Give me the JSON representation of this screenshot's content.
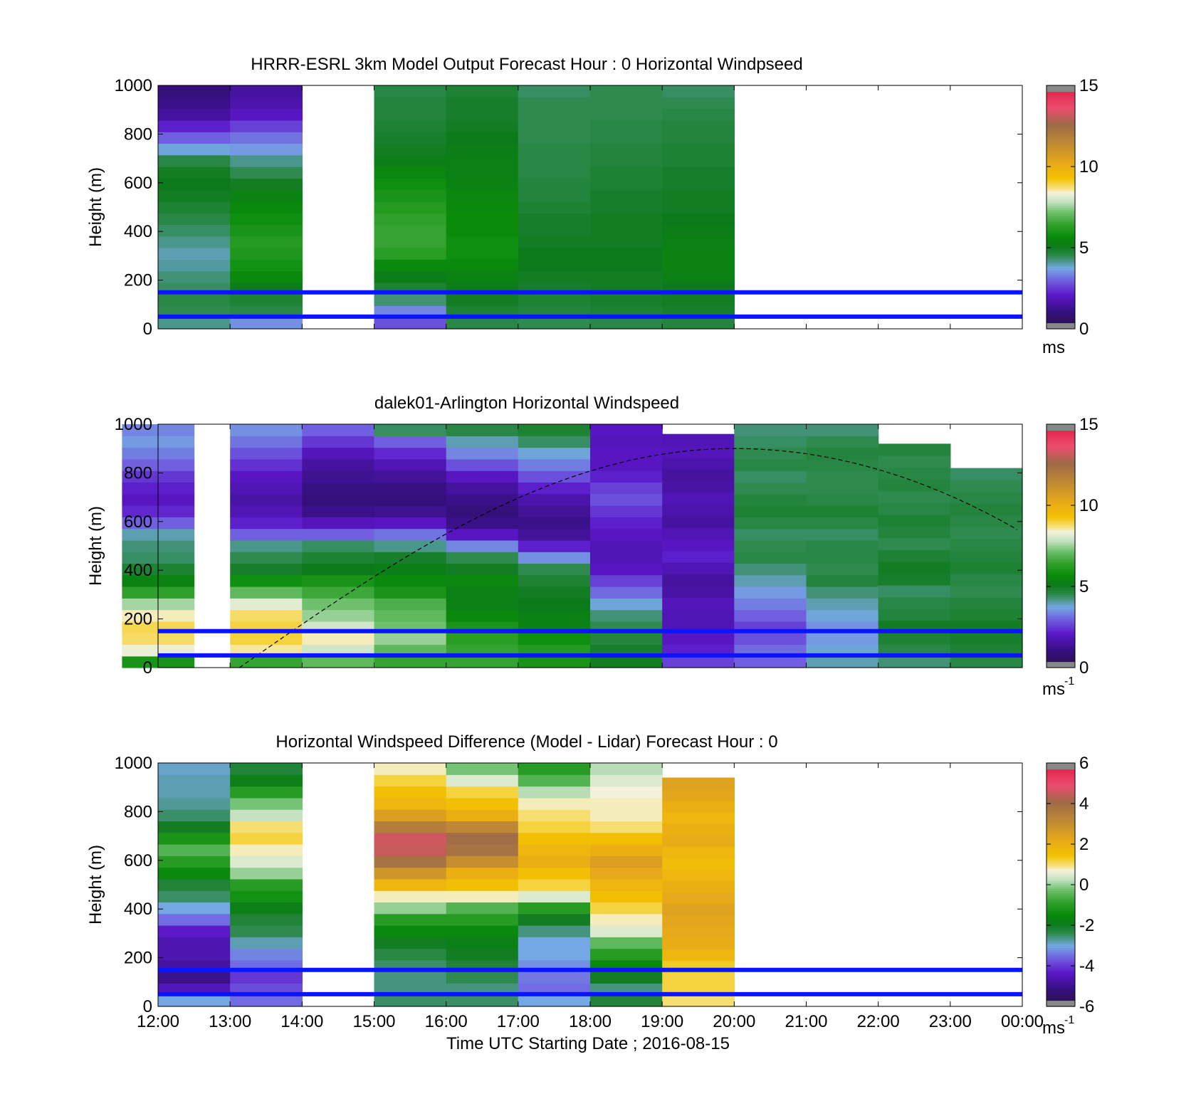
{
  "figure": {
    "xlabel": "Time UTC  Starting Date ; 2016-08-15",
    "xticks": [
      "12:00",
      "13:00",
      "14:00",
      "15:00",
      "16:00",
      "17:00",
      "18:00",
      "19:00",
      "20:00",
      "21:00",
      "22:00",
      "23:00",
      "00:00"
    ]
  },
  "chart_data": [
    {
      "type": "heatmap",
      "title": "HRRR-ESRL 3km Model Output   Forecast Hour : 0 Horizontal Windpseed",
      "ylabel": "Height (m)",
      "ylim": [
        0,
        1000
      ],
      "yticks": [
        "0",
        "200",
        "400",
        "600",
        "800",
        "1000"
      ],
      "colorbar": {
        "range": [
          0,
          15
        ],
        "ticks": [
          "0",
          "5",
          "10",
          "15"
        ],
        "unit": "ms",
        "exponent": ""
      },
      "reference_lines_m": [
        150,
        50
      ],
      "columns": [
        {
          "hour": 12,
          "top": 1000,
          "values": [
            4.2,
            4.5,
            4.6,
            4.4,
            4.3,
            4.1,
            4.0,
            4.2,
            4.4,
            4.6,
            4.8,
            5.0,
            5.1,
            5.0,
            4.6,
            3.8,
            3.0,
            2.2,
            1.5,
            1.2,
            1.0
          ]
        },
        {
          "hour": 13,
          "top": 1000,
          "values": [
            3.5,
            4.6,
            4.8,
            5.2,
            5.6,
            5.9,
            6.1,
            6.2,
            6.0,
            5.8,
            5.6,
            5.4,
            5.0,
            4.5,
            4.2,
            3.6,
            3.2,
            2.6,
            2.0,
            1.7,
            1.5
          ]
        },
        {
          "hour": 15,
          "top": 1000,
          "values": [
            2.8,
            3.4,
            4.3,
            4.8,
            5.2,
            5.6,
            6.3,
            6.5,
            6.5,
            6.4,
            6.2,
            6.0,
            5.8,
            5.5,
            5.2,
            5.0,
            4.9,
            4.8,
            4.7,
            4.7,
            4.6
          ]
        },
        {
          "hour": 16,
          "top": 1000,
          "values": [
            4.6,
            4.8,
            5.0,
            5.2,
            5.4,
            5.6,
            5.8,
            5.8,
            5.7,
            5.7,
            5.6,
            5.5,
            5.4,
            5.3,
            5.3,
            5.2,
            5.1,
            5.0,
            4.9,
            4.9,
            4.8
          ]
        },
        {
          "hour": 17,
          "top": 1000,
          "values": [
            4.5,
            4.7,
            4.8,
            4.9,
            5.0,
            5.1,
            5.1,
            5.0,
            4.9,
            4.9,
            4.8,
            4.7,
            4.7,
            4.6,
            4.6,
            4.6,
            4.5,
            4.5,
            4.5,
            4.5,
            4.4
          ]
        },
        {
          "hour": 18,
          "top": 1000,
          "values": [
            4.6,
            4.8,
            4.9,
            5.0,
            5.0,
            5.1,
            5.1,
            5.0,
            5.0,
            5.0,
            4.9,
            4.9,
            4.8,
            4.8,
            4.7,
            4.7,
            4.6,
            4.6,
            4.5,
            4.5,
            4.5
          ]
        },
        {
          "hour": 19,
          "top": 1000,
          "values": [
            4.7,
            4.9,
            5.0,
            5.1,
            5.3,
            5.4,
            5.4,
            5.3,
            5.2,
            5.1,
            5.0,
            5.0,
            4.9,
            4.9,
            4.8,
            4.8,
            4.7,
            4.7,
            4.6,
            4.5,
            4.4
          ]
        }
      ]
    },
    {
      "type": "heatmap",
      "title": "dalek01-Arlington  Horizontal Windspeed",
      "ylabel": "Height (m)",
      "ylim": [
        0,
        1000
      ],
      "yticks": [
        "0",
        "200",
        "400",
        "600",
        "800",
        "1000"
      ],
      "colorbar": {
        "range": [
          0,
          15
        ],
        "ticks": [
          "0",
          "5",
          "10",
          "15"
        ],
        "unit": "ms",
        "exponent": "-1"
      },
      "reference_lines_m": [
        150,
        50
      ],
      "solar_curve": {
        "hours": [
          13.13,
          20.0,
          24.0
        ],
        "heights_m": [
          0,
          900,
          555
        ]
      },
      "profiles": [
        {
          "hour": 12.0,
          "top": 1000,
          "values": [
            6.0,
            8.3,
            8.8,
            8.9,
            8.5,
            7.6,
            6.4,
            5.4,
            4.8,
            4.4,
            4.3,
            4.0,
            3.0,
            2.3,
            2.0,
            2.2,
            2.5,
            3.0,
            3.3,
            3.6,
            3.4
          ]
        },
        {
          "hour": 13.5,
          "top": 1000,
          "values": [
            6.5,
            8.6,
            9.0,
            9.0,
            8.8,
            8.2,
            7.0,
            5.8,
            4.9,
            4.5,
            4.2,
            3.0,
            2.2,
            1.8,
            1.6,
            1.8,
            2.0,
            2.4,
            2.8,
            3.2,
            3.5
          ]
        },
        {
          "hour": 14.5,
          "top": 1000,
          "values": [
            7.0,
            8.0,
            8.5,
            8.0,
            7.5,
            7.2,
            6.6,
            6.0,
            5.1,
            4.8,
            4.4,
            3.0,
            1.9,
            1.2,
            1.0,
            1.1,
            1.3,
            1.5,
            1.9,
            2.5,
            3.0
          ]
        },
        {
          "hour": 15.5,
          "top": 1000,
          "values": [
            6.5,
            7.0,
            7.5,
            7.2,
            7.0,
            6.8,
            6.0,
            5.6,
            5.2,
            4.9,
            4.2,
            3.2,
            2.0,
            1.3,
            1.0,
            1.1,
            1.4,
            1.8,
            2.3,
            3.0,
            4.4
          ]
        },
        {
          "hour": 16.5,
          "top": 1000,
          "values": [
            6.5,
            6.5,
            6.3,
            6.0,
            5.6,
            5.3,
            5.3,
            5.5,
            5.0,
            4.5,
            3.4,
            2.0,
            1.2,
            1.0,
            1.2,
            1.5,
            2.0,
            2.8,
            3.4,
            4.0,
            4.6
          ]
        },
        {
          "hour": 17.5,
          "top": 1000,
          "values": [
            6.0,
            6.2,
            5.8,
            5.4,
            5.3,
            5.1,
            5.0,
            4.8,
            4.5,
            3.5,
            2.2,
            1.4,
            1.2,
            1.4,
            1.7,
            2.2,
            2.8,
            3.3,
            3.8,
            4.4,
            4.8
          ]
        },
        {
          "hour": 18.5,
          "top": 1000,
          "values": [
            5.0,
            4.9,
            4.7,
            4.5,
            4.3,
            3.8,
            3.1,
            2.6,
            2.0,
            1.8,
            1.8,
            2.0,
            2.2,
            2.5,
            2.8,
            2.6,
            2.2,
            2.0,
            2.0,
            1.9,
            2.0
          ]
        },
        {
          "hour": 19.5,
          "top": 960,
          "values": [
            2.6,
            2.2,
            2.0,
            1.8,
            1.8,
            1.9,
            1.6,
            1.5,
            1.8,
            2.2,
            2.0,
            1.8,
            1.5,
            1.7,
            1.8,
            1.6,
            1.5,
            1.7,
            1.9,
            1.8
          ]
        },
        {
          "hour": 20.5,
          "top": 1000,
          "values": [
            3.0,
            3.1,
            2.8,
            2.6,
            3.0,
            3.3,
            3.6,
            4.0,
            4.3,
            4.6,
            4.5,
            4.4,
            4.6,
            4.8,
            4.7,
            4.5,
            4.4,
            4.6,
            4.5,
            4.4,
            4.3
          ]
        },
        {
          "hour": 21.5,
          "top": 1000,
          "values": [
            4.0,
            3.8,
            3.6,
            3.5,
            3.8,
            4.0,
            4.3,
            4.7,
            4.5,
            4.6,
            4.6,
            4.4,
            4.6,
            4.8,
            4.6,
            4.5,
            4.5,
            4.6,
            4.7,
            4.5,
            4.3
          ]
        },
        {
          "hour": 22.5,
          "top": 920,
          "values": [
            4.3,
            4.6,
            4.8,
            5.0,
            4.7,
            4.6,
            4.4,
            4.9,
            5.0,
            4.8,
            4.5,
            4.7,
            4.8,
            4.6,
            4.5,
            4.7,
            4.6,
            4.5,
            4.7
          ]
        },
        {
          "hour": 23.5,
          "top": 820,
          "values": [
            4.6,
            4.8,
            4.9,
            5.0,
            4.8,
            4.7,
            4.5,
            4.6,
            4.8,
            4.7,
            4.6,
            4.5,
            4.6,
            4.7,
            4.6,
            4.5,
            4.4
          ]
        }
      ]
    },
    {
      "type": "heatmap",
      "title": "Horizontal Windspeed Difference (Model - Lidar) Forecast Hour : 0",
      "ylabel": "Height (m)",
      "ylim": [
        0,
        1000
      ],
      "yticks": [
        "0",
        "200",
        "400",
        "600",
        "800",
        "1000"
      ],
      "colorbar": {
        "range": [
          -6,
          6
        ],
        "ticks": [
          "-6",
          "-4",
          "-2",
          "0",
          "2",
          "4",
          "6"
        ],
        "unit": "ms",
        "exponent": "-1"
      },
      "reference_lines_m": [
        150,
        50
      ],
      "columns": [
        {
          "hour": 12,
          "top": 1000,
          "values": [
            -3.0,
            -4.5,
            -5.0,
            -4.8,
            -4.6,
            -4.6,
            -4.3,
            -3.5,
            -3.0,
            -2.5,
            -2.2,
            -1.5,
            -1.0,
            -0.5,
            -1.2,
            -2.0,
            -2.5,
            -2.7,
            -2.8,
            -2.8,
            -2.9
          ]
        },
        {
          "hour": 13,
          "top": 1000,
          "values": [
            -3.5,
            -3.8,
            -4.0,
            -3.5,
            -3.3,
            -2.8,
            -2.4,
            -2.2,
            -1.8,
            -1.3,
            -1.0,
            0.0,
            0.5,
            0.8,
            1.2,
            1.0,
            0.3,
            -0.2,
            -1.0,
            -1.8,
            -2.2
          ]
        },
        {
          "hour": 15,
          "top": 1000,
          "values": [
            -2.5,
            -2.6,
            -2.6,
            -2.5,
            -2.3,
            -2.0,
            -1.5,
            -1.0,
            0.0,
            0.8,
            1.8,
            2.8,
            3.8,
            4.5,
            4.6,
            3.5,
            2.5,
            1.8,
            1.5,
            1.2,
            0.8
          ]
        },
        {
          "hour": 16,
          "top": 1000,
          "values": [
            -2.5,
            -2.6,
            -2.4,
            -2.2,
            -2.0,
            -1.8,
            -1.5,
            -1.0,
            -0.5,
            0.8,
            1.5,
            2.0,
            3.0,
            3.8,
            4.0,
            3.2,
            2.0,
            1.5,
            1.2,
            0.5,
            -0.2
          ]
        },
        {
          "hour": 17,
          "top": 1000,
          "values": [
            -3.0,
            -3.5,
            -3.4,
            -3.2,
            -3.0,
            -3.0,
            -2.6,
            -2.0,
            -1.0,
            0.5,
            1.2,
            1.5,
            2.0,
            1.8,
            1.5,
            1.2,
            1.0,
            0.8,
            0.2,
            -0.5,
            -1.0
          ]
        },
        {
          "hour": 18,
          "top": 1000,
          "values": [
            -2.2,
            -2.6,
            -2.0,
            -1.5,
            -1.0,
            -0.4,
            0.5,
            0.8,
            1.2,
            1.5,
            1.8,
            2.2,
            2.5,
            2.0,
            1.5,
            1.0,
            0.8,
            0.8,
            0.7,
            0.5,
            0.2
          ]
        },
        {
          "hour": 19,
          "top": 940,
          "values": [
            1.0,
            1.2,
            1.2,
            1.3,
            1.8,
            2.1,
            2.2,
            2.3,
            2.4,
            2.2,
            2.0,
            1.8,
            1.6,
            1.8,
            2.1,
            2.0,
            1.8,
            2.0,
            2.3,
            2.4
          ]
        }
      ]
    }
  ]
}
